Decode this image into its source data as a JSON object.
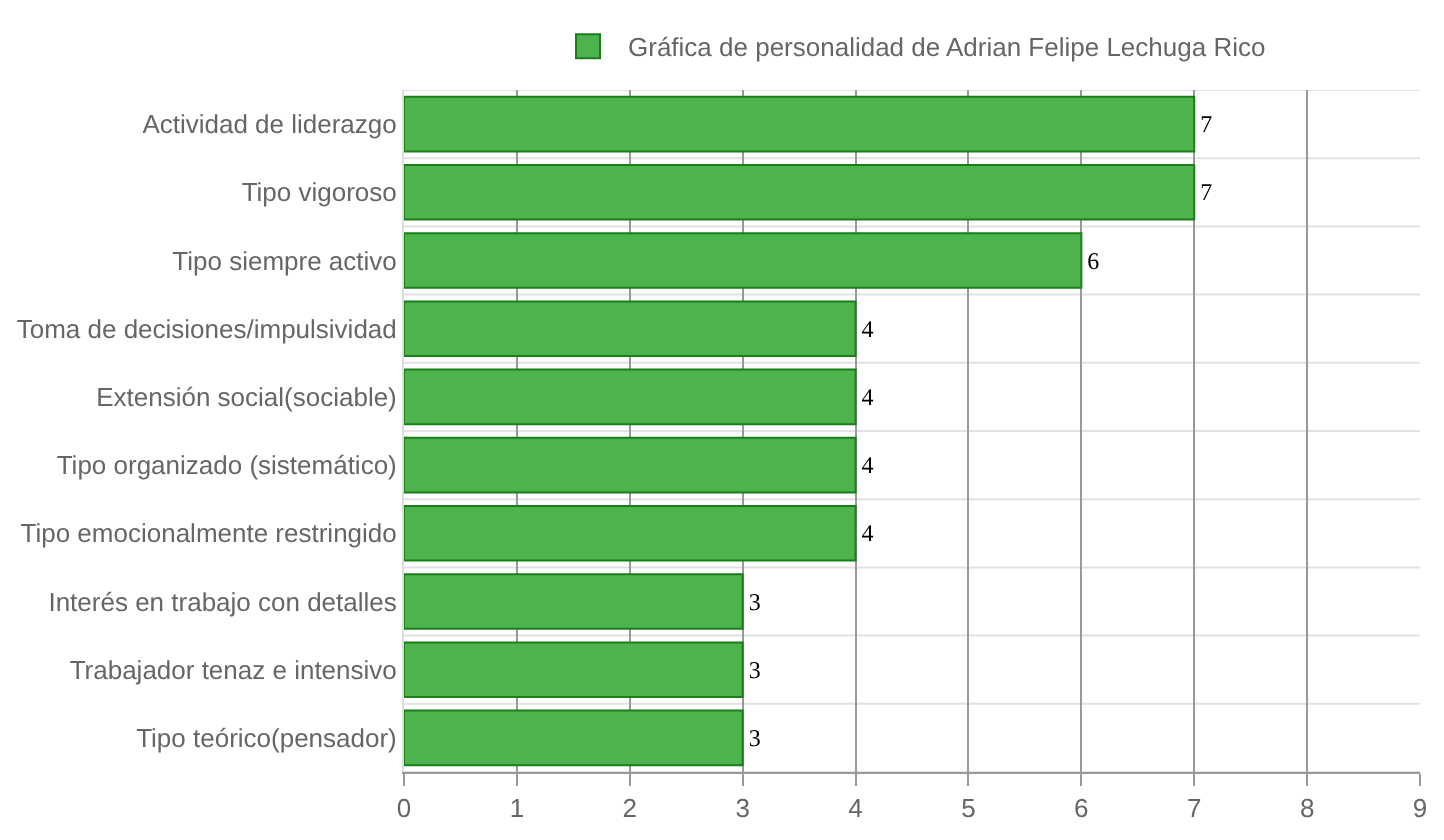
{
  "chart_data": {
    "type": "bar",
    "orientation": "horizontal",
    "categories": [
      "Actividad de liderazgo",
      "Tipo vigoroso",
      "Tipo siempre activo",
      "Toma de decisiones/impulsividad",
      "Extensión social(sociable)",
      "Tipo organizado (sistemático)",
      "Tipo emocionalmente restringido",
      "Interés en trabajo con detalles",
      "Trabajador tenaz e intensivo",
      "Tipo teórico(pensador)"
    ],
    "series": [
      {
        "name": "Gráfica de personalidad de Adrian Felipe Lechuga Rico",
        "color": "#4db34d",
        "values": [
          7,
          7,
          6,
          4,
          4,
          4,
          4,
          3,
          3,
          3
        ]
      }
    ],
    "xlim": [
      0,
      9
    ],
    "xticks": [
      0,
      1,
      2,
      3,
      4,
      5,
      6,
      7,
      8,
      9
    ],
    "grid": true,
    "legend": "top",
    "data_labels": true
  }
}
